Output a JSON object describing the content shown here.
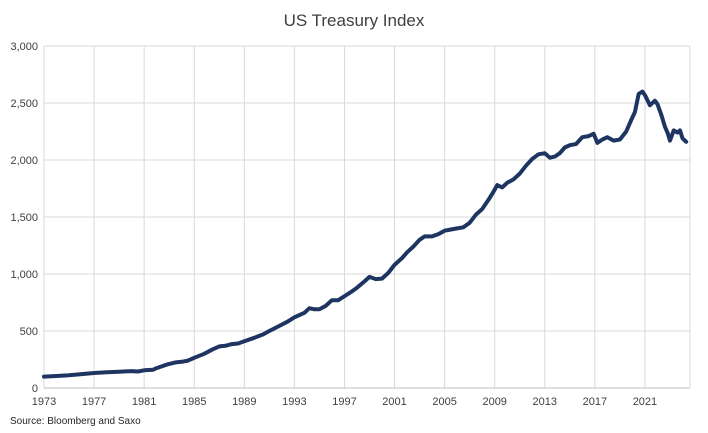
{
  "chart_data": {
    "type": "line",
    "title": "US Treasury Index",
    "xlabel": "",
    "ylabel": "",
    "source": "Source: Bloomberg and Saxo",
    "xlim": [
      1973,
      2024.6
    ],
    "ylim": [
      0,
      3000
    ],
    "grid": true,
    "line_color": "#1f3561",
    "x_ticks": [
      1973,
      1977,
      1981,
      1985,
      1989,
      1993,
      1997,
      2001,
      2005,
      2009,
      2013,
      2017,
      2021
    ],
    "x_tick_labels": [
      "1973",
      "1977",
      "1981",
      "1985",
      "1989",
      "1993",
      "1997",
      "2001",
      "2005",
      "2009",
      "2013",
      "2017",
      "2021"
    ],
    "y_ticks": [
      0,
      500,
      1000,
      1500,
      2000,
      2500,
      3000
    ],
    "y_tick_labels": [
      "0",
      "500",
      "1,000",
      "1,500",
      "2,000",
      "2,500",
      "3,000"
    ],
    "series": [
      {
        "x": [
          1973.0,
          1974.0,
          1975.0,
          1976.0,
          1977.0,
          1978.0,
          1979.0,
          1980.0,
          1980.5,
          1981.0,
          1981.7,
          1982.0,
          1982.8,
          1983.5,
          1984.0,
          1984.5,
          1985.0,
          1985.8,
          1986.5,
          1987.0,
          1987.5,
          1988.0,
          1988.5,
          1989.0,
          1989.8,
          1990.5,
          1991.0,
          1991.8,
          1992.5,
          1993.0,
          1993.8,
          1994.2,
          1994.6,
          1995.0,
          1995.5,
          1996.0,
          1996.5,
          1997.0,
          1997.5,
          1998.0,
          1998.6,
          1999.0,
          1999.5,
          2000.0,
          2000.5,
          2001.0,
          2001.6,
          2002.0,
          2002.5,
          2003.0,
          2003.4,
          2004.0,
          2004.5,
          2005.0,
          2005.5,
          2006.0,
          2006.5,
          2007.0,
          2007.5,
          2008.0,
          2008.5,
          2008.9,
          2009.2,
          2009.6,
          2010.0,
          2010.5,
          2011.0,
          2011.5,
          2012.0,
          2012.5,
          2013.0,
          2013.4,
          2013.8,
          2014.2,
          2014.6,
          2015.0,
          2015.5,
          2016.0,
          2016.5,
          2016.9,
          2017.2,
          2017.6,
          2018.0,
          2018.5,
          2019.0,
          2019.5,
          2019.9,
          2020.2,
          2020.5,
          2020.8,
          2021.0,
          2021.4,
          2021.8,
          2022.0,
          2022.3,
          2022.6,
          2022.8,
          2023.0,
          2023.3,
          2023.6,
          2023.8,
          2024.0,
          2024.3
        ],
        "y": [
          100,
          105,
          112,
          122,
          132,
          138,
          143,
          148,
          145,
          155,
          160,
          175,
          205,
          225,
          230,
          240,
          265,
          300,
          340,
          365,
          370,
          385,
          390,
          410,
          440,
          470,
          500,
          545,
          585,
          620,
          660,
          700,
          690,
          690,
          720,
          770,
          770,
          805,
          840,
          880,
          935,
          975,
          955,
          960,
          1010,
          1080,
          1140,
          1190,
          1240,
          1300,
          1330,
          1330,
          1350,
          1380,
          1390,
          1400,
          1410,
          1450,
          1520,
          1570,
          1650,
          1720,
          1780,
          1760,
          1800,
          1830,
          1880,
          1950,
          2010,
          2050,
          2060,
          2020,
          2030,
          2060,
          2110,
          2130,
          2140,
          2200,
          2210,
          2230,
          2150,
          2180,
          2200,
          2170,
          2180,
          2250,
          2350,
          2420,
          2580,
          2600,
          2570,
          2480,
          2520,
          2490,
          2400,
          2290,
          2240,
          2170,
          2260,
          2240,
          2260,
          2190,
          2160
        ]
      }
    ]
  }
}
